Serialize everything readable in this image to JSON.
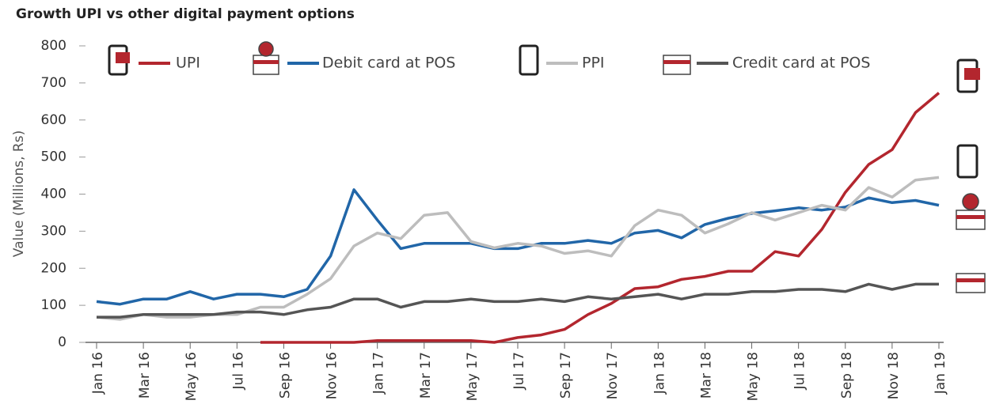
{
  "chart_data": {
    "type": "line",
    "title": "Growth UPI vs other digital payment options",
    "y_label": "Value (Millions, Rs)",
    "categories": [
      "Jan 16",
      null,
      "Mar 16",
      null,
      "May 16",
      null,
      "Jul 16",
      null,
      "Sep 16",
      null,
      "Nov 16",
      null,
      "Jan 17",
      null,
      "Mar 17",
      null,
      "May 17",
      null,
      "Jul 17",
      null,
      "Sep 17",
      null,
      "Nov 17",
      null,
      "Jan 18",
      null,
      "Mar 18",
      null,
      "May 18",
      null,
      "Jul 18",
      null,
      "Sep 18",
      null,
      "Nov 18",
      null,
      "Jan 19"
    ],
    "series": [
      {
        "name": "UPI",
        "color": "#b3262e",
        "values": [
          null,
          null,
          null,
          null,
          null,
          null,
          null,
          0,
          0,
          0,
          0,
          0,
          5,
          5,
          5,
          5,
          5,
          0,
          13,
          20,
          35,
          75,
          105,
          145,
          150,
          170,
          178,
          192,
          192,
          245,
          233,
          305,
          405,
          480,
          520,
          620,
          673
        ]
      },
      {
        "name": "Debit card at POS",
        "color": "#2166a8",
        "values": [
          110,
          103,
          117,
          117,
          137,
          117,
          130,
          130,
          123,
          143,
          233,
          412,
          330,
          253,
          267,
          267,
          267,
          253,
          253,
          267,
          267,
          275,
          267,
          295,
          302,
          282,
          318,
          335,
          348,
          355,
          363,
          357,
          365,
          390,
          377,
          383,
          370
        ]
      },
      {
        "name": "PPI",
        "color": "#bdbdbd",
        "values": [
          68,
          62,
          75,
          68,
          68,
          75,
          75,
          95,
          95,
          130,
          172,
          260,
          295,
          280,
          343,
          350,
          272,
          255,
          267,
          260,
          240,
          247,
          233,
          315,
          357,
          343,
          295,
          320,
          350,
          330,
          350,
          370,
          357,
          418,
          392,
          438,
          445
        ]
      },
      {
        "name": "Credit card at POS",
        "color": "#555555",
        "values": [
          68,
          68,
          75,
          75,
          75,
          75,
          82,
          82,
          75,
          88,
          95,
          117,
          117,
          95,
          110,
          110,
          117,
          110,
          110,
          117,
          110,
          123,
          117,
          123,
          130,
          117,
          130,
          130,
          137,
          137,
          143,
          143,
          137,
          157,
          143,
          157,
          157
        ]
      }
    ],
    "ylim": [
      0,
      800
    ],
    "yticks": [
      0,
      100,
      200,
      300,
      400,
      500,
      600,
      700,
      800
    ],
    "grid": false
  }
}
